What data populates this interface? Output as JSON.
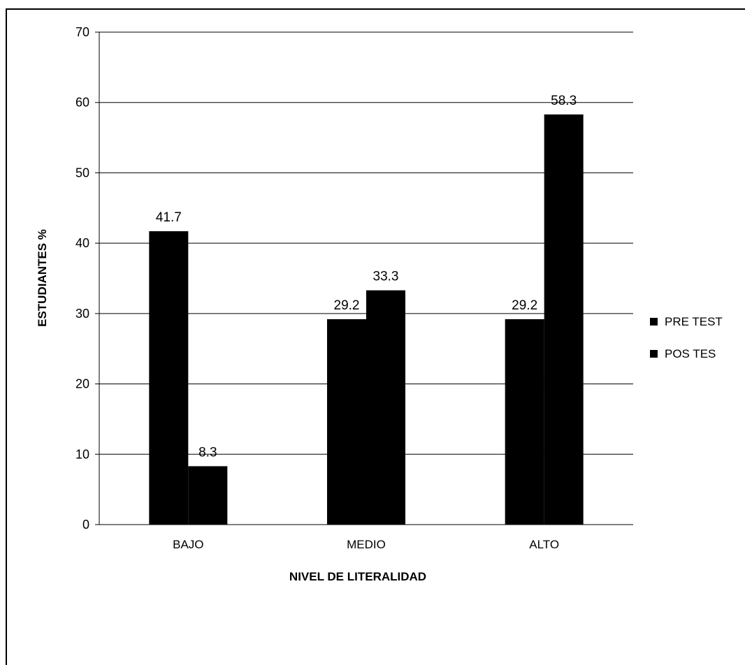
{
  "chart_data": {
    "type": "bar",
    "categories": [
      "BAJO",
      "MEDIO",
      "ALTO"
    ],
    "series": [
      {
        "name": "PRE TEST",
        "values": [
          41.7,
          29.2,
          29.2
        ],
        "labels": [
          "41.7",
          "29.2",
          "29.2"
        ]
      },
      {
        "name": "POS TES",
        "values": [
          8.3,
          33.3,
          58.3
        ],
        "labels": [
          "8.3",
          "33.3",
          "58.3"
        ]
      }
    ],
    "xlabel": "NIVEL DE LITERALIDAD",
    "ylabel": "ESTUDIANTES %",
    "ylim": [
      0,
      70
    ],
    "yticks": [
      0,
      10,
      20,
      30,
      40,
      50,
      60,
      70
    ],
    "grid": true,
    "legend_position": "right",
    "colors": {
      "bar": "#000000",
      "grid": "#000000",
      "background": "#ffffff"
    }
  }
}
